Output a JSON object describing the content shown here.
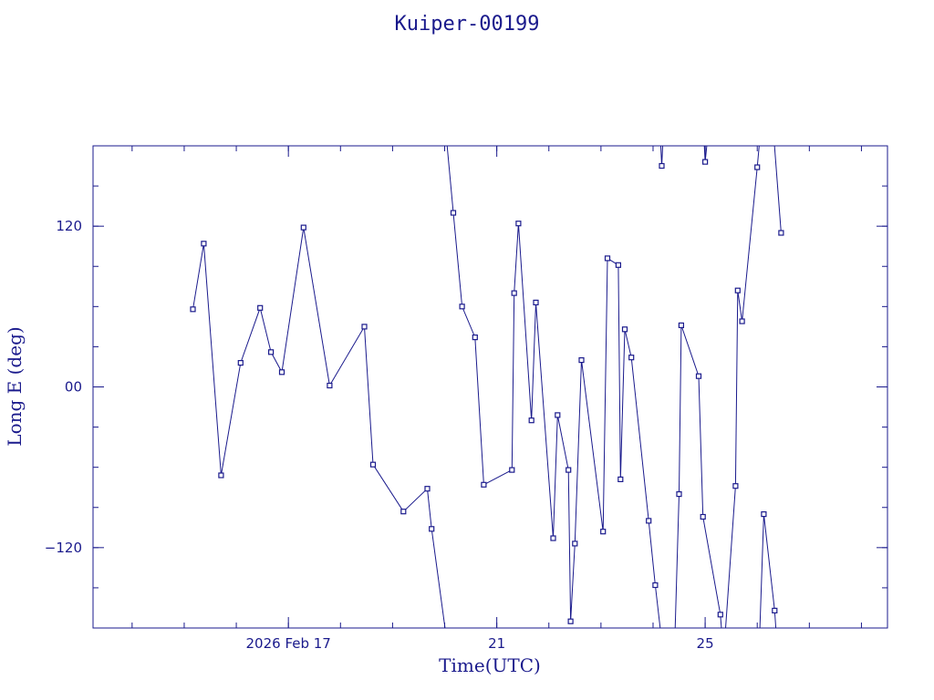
{
  "chart_data": {
    "type": "line",
    "title": "Kuiper-00199",
    "xlabel": "Time(UTC)",
    "ylabel": "Long E (deg)",
    "xlim": [
      "2026-02-13T06:00",
      "2026-02-28T12:00"
    ],
    "ylim": [
      -180,
      180
    ],
    "x_ticks": [
      {
        "date": "2026-02-17",
        "label": "2026 Feb 17"
      },
      {
        "date": "2026-02-21",
        "label": "21"
      },
      {
        "date": "2026-02-25",
        "label": "25"
      }
    ],
    "y_ticks": [
      {
        "value": -120,
        "label": "−120"
      },
      {
        "value": 0,
        "label": "00"
      },
      {
        "value": 120,
        "label": "120"
      }
    ],
    "grid": false,
    "marker": "square",
    "color": "#1a1a8c",
    "series": [
      {
        "points": [
          [
            "2026-02-15T04:00",
            58
          ],
          [
            "2026-02-15T09:00",
            107
          ],
          [
            "2026-02-15T17:00",
            -66
          ],
          [
            "2026-02-16T02:00",
            18
          ],
          [
            "2026-02-16T11:00",
            59
          ],
          [
            "2026-02-16T16:00",
            26
          ],
          [
            "2026-02-16T21:00",
            11
          ],
          [
            "2026-02-17T07:00",
            119
          ],
          [
            "2026-02-17T19:00",
            1
          ],
          [
            "2026-02-18T11:00",
            45
          ],
          [
            "2026-02-18T15:00",
            -58
          ],
          [
            "2026-02-19T05:00",
            -93
          ],
          [
            "2026-02-19T16:00",
            -76
          ],
          [
            "2026-02-19T18:00",
            -106
          ],
          [
            "2026-02-20T01:00",
            -190
          ]
        ]
      },
      {
        "points": [
          [
            "2026-02-20T00:00",
            200
          ],
          [
            "2026-02-20T04:00",
            130
          ],
          [
            "2026-02-20T08:00",
            60
          ],
          [
            "2026-02-20T14:00",
            37
          ],
          [
            "2026-02-20T18:00",
            -73
          ],
          [
            "2026-02-21T07:00",
            -62
          ],
          [
            "2026-02-21T08:00",
            70
          ],
          [
            "2026-02-21T10:00",
            122
          ],
          [
            "2026-02-21T16:00",
            -25
          ],
          [
            "2026-02-21T18:00",
            63
          ],
          [
            "2026-02-22T02:00",
            -113
          ],
          [
            "2026-02-22T04:00",
            -21
          ],
          [
            "2026-02-22T09:00",
            -62
          ],
          [
            "2026-02-22T10:00",
            -175
          ],
          [
            "2026-02-22T12:00",
            -117
          ],
          [
            "2026-02-22T15:00",
            20
          ],
          [
            "2026-02-23T01:00",
            -108
          ],
          [
            "2026-02-23T03:00",
            96
          ],
          [
            "2026-02-23T08:00",
            91
          ],
          [
            "2026-02-23T09:00",
            -69
          ],
          [
            "2026-02-23T11:00",
            43
          ],
          [
            "2026-02-23T14:00",
            22
          ],
          [
            "2026-02-23T22:00",
            -100
          ],
          [
            "2026-02-24T01:00",
            -148
          ],
          [
            "2026-02-24T04:00",
            -190
          ]
        ]
      },
      {
        "points": [
          [
            "2026-02-24T03:00",
            200
          ],
          [
            "2026-02-24T04:00",
            165
          ],
          [
            "2026-02-24T05:00",
            200
          ]
        ]
      },
      {
        "points": [
          [
            "2026-02-24T10:00",
            -190
          ],
          [
            "2026-02-24T12:00",
            -80
          ],
          [
            "2026-02-24T13:00",
            46
          ],
          [
            "2026-02-24T21:00",
            8
          ],
          [
            "2026-02-24T23:00",
            -97
          ],
          [
            "2026-02-25T07:00",
            -170
          ],
          [
            "2026-02-25T08:00",
            -190
          ]
        ]
      },
      {
        "points": [
          [
            "2026-02-24T23:00",
            200
          ],
          [
            "2026-02-25T00:00",
            168
          ],
          [
            "2026-02-25T02:00",
            200
          ]
        ]
      },
      {
        "points": [
          [
            "2026-02-25T09:00",
            -190
          ],
          [
            "2026-02-25T14:00",
            -74
          ],
          [
            "2026-02-25T15:00",
            72
          ],
          [
            "2026-02-25T17:00",
            49
          ],
          [
            "2026-02-26T00:00",
            164
          ],
          [
            "2026-02-26T02:00",
            200
          ]
        ]
      },
      {
        "points": [
          [
            "2026-02-26T01:00",
            -190
          ],
          [
            "2026-02-26T03:00",
            -95
          ],
          [
            "2026-02-26T08:00",
            -167
          ],
          [
            "2026-02-26T09:00",
            -190
          ]
        ]
      },
      {
        "points": [
          [
            "2026-02-26T07:00",
            200
          ],
          [
            "2026-02-26T11:00",
            115
          ]
        ]
      }
    ]
  }
}
